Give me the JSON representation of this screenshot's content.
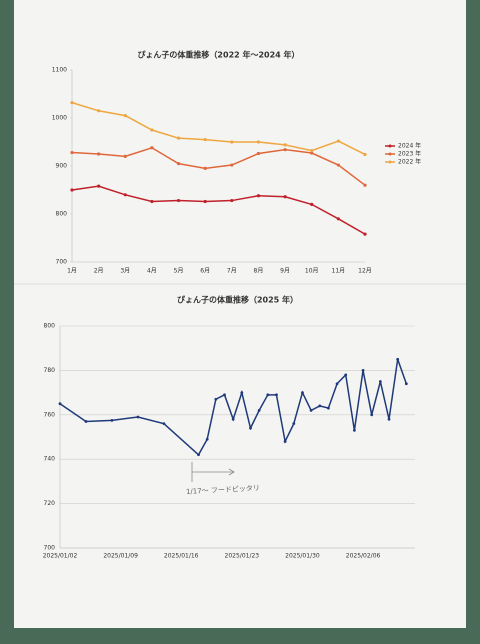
{
  "chart_data": [
    {
      "type": "line",
      "title": "ぴょん子の体重推移（2022 年～2024 年）",
      "categories": [
        "1月",
        "2月",
        "3月",
        "4月",
        "5月",
        "6月",
        "7月",
        "8月",
        "9月",
        "10月",
        "11月",
        "12月"
      ],
      "ylim": [
        700,
        1100
      ],
      "yticks": [
        700,
        800,
        900,
        1000,
        1100
      ],
      "grid": false,
      "legend": "right",
      "series": [
        {
          "name": "2024 年",
          "color": "#c0202a",
          "values": [
            850,
            858,
            840,
            826,
            828,
            826,
            828,
            838,
            836,
            820,
            790,
            758
          ]
        },
        {
          "name": "2023 年",
          "color": "#e0673a",
          "values": [
            928,
            925,
            920,
            938,
            905,
            895,
            902,
            926,
            934,
            927,
            902,
            860
          ]
        },
        {
          "name": "2022 年",
          "color": "#f0a640",
          "values": [
            1032,
            1015,
            1005,
            975,
            958,
            955,
            950,
            950,
            944,
            932,
            952,
            924
          ]
        }
      ]
    },
    {
      "type": "line",
      "title": "ぴょん子の体重推移（2025 年）",
      "x": [
        "2025/01/02",
        "2025/01/05",
        "2025/01/08",
        "2025/01/11",
        "2025/01/14",
        "2025/01/18",
        "2025/01/19",
        "2025/01/20",
        "2025/01/21",
        "2025/01/22",
        "2025/01/23",
        "2025/01/24",
        "2025/01/25",
        "2025/01/26",
        "2025/01/27",
        "2025/01/28",
        "2025/01/29",
        "2025/01/30",
        "2025/01/31",
        "2025/02/01",
        "2025/02/02",
        "2025/02/03",
        "2025/02/04",
        "2025/02/05",
        "2025/02/06",
        "2025/02/07",
        "2025/02/08",
        "2025/02/09",
        "2025/02/10",
        "2025/02/11"
      ],
      "xlim": [
        "2025/01/02",
        "2025/02/12"
      ],
      "xticks": [
        "2025/01/02",
        "2025/01/09",
        "2025/01/16",
        "2025/01/23",
        "2025/01/30",
        "2025/02/06"
      ],
      "ylim": [
        700,
        800
      ],
      "yticks": [
        700,
        720,
        740,
        760,
        780,
        800
      ],
      "grid": true,
      "annotation": "1/17～ フードピッタリ",
      "series": [
        {
          "color": "#1f3a7a",
          "values": [
            765,
            757,
            757.5,
            759,
            756,
            742,
            749,
            767,
            769,
            758,
            770,
            754,
            762,
            769,
            769,
            748,
            756,
            770,
            762,
            764,
            763,
            774,
            778,
            753,
            780,
            760,
            775,
            758,
            785,
            774
          ]
        }
      ]
    }
  ]
}
